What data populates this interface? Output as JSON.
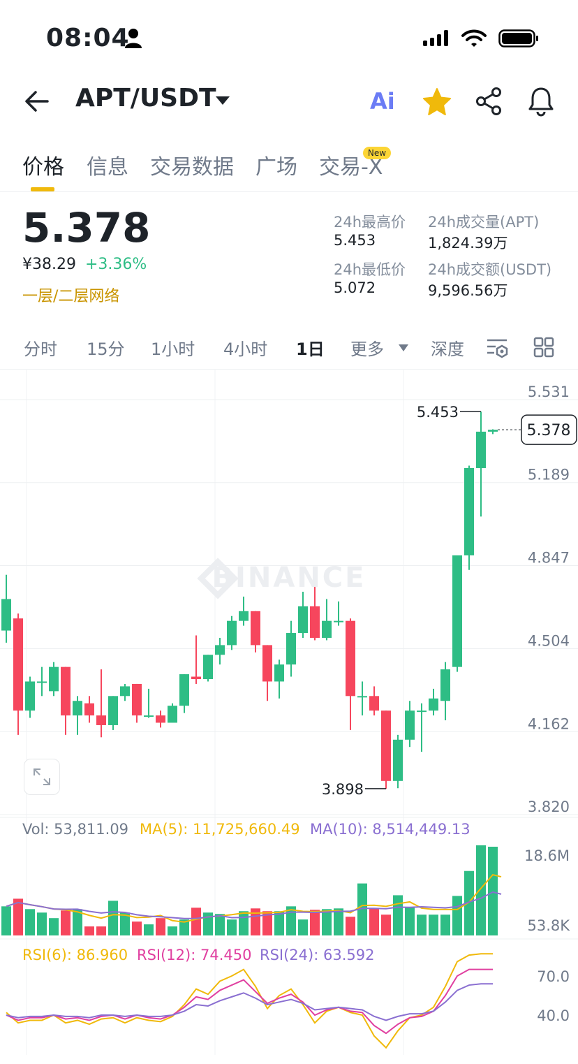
{
  "status_bar": {
    "time": "08:04",
    "icons": [
      "person-icon",
      "signal-icon",
      "wifi-icon",
      "battery-icon"
    ]
  },
  "header": {
    "pair": "APT/USDT",
    "ai_label": "Ai",
    "icons": [
      "back-arrow-icon",
      "chevron-down-icon",
      "star-icon",
      "share-icon",
      "bell-icon"
    ],
    "star_color": "#f0b90b"
  },
  "tabs": [
    {
      "label": "价格"
    },
    {
      "label": "信息"
    },
    {
      "label": "交易数据"
    },
    {
      "label": "广场"
    },
    {
      "label": "交易-X",
      "badge": "New"
    }
  ],
  "ticker": {
    "last_price": "5.378",
    "cny_price": "¥38.29",
    "change_pct": "+3.36%",
    "network_tag": "一层/二层网络",
    "high_label": "24h最高价",
    "high_value": "5.453",
    "low_label": "24h最低价",
    "low_value": "5.072",
    "vol_base_label": "24h成交量(APT)",
    "vol_base_value": "1,824.39万",
    "vol_quote_label": "24h成交额(USDT)",
    "vol_quote_value": "9,596.56万"
  },
  "intervals": {
    "items": [
      "分时",
      "15分",
      "1小时",
      "4小时",
      "1日",
      "更多",
      "深度"
    ],
    "active": "1日",
    "icons": [
      "indicator-settings-icon",
      "layout-grid-icon"
    ]
  },
  "colors": {
    "up": "#2ebd85",
    "down": "#f6465d",
    "accent": "#f0b90b",
    "ma5": "#f0b90b",
    "ma10": "#8a6fd1",
    "rsi6": "#f0b90b",
    "rsi12": "#e040a0",
    "rsi24": "#8a6fd1"
  },
  "watermark": "BINANCE",
  "chart_data": {
    "type": "candlestick",
    "y_axis_labels": [
      "5.531",
      "5.189",
      "4.847",
      "4.504",
      "4.162",
      "3.820"
    ],
    "ylim": [
      3.82,
      5.531
    ],
    "current_price_tag": "5.378",
    "max_marker": "5.453",
    "min_marker": "3.898",
    "candles": [
      {
        "o": 4.55,
        "h": 4.78,
        "l": 4.5,
        "c": 4.68
      },
      {
        "o": 4.6,
        "h": 4.62,
        "l": 4.12,
        "c": 4.22
      },
      {
        "o": 4.22,
        "h": 4.36,
        "l": 4.19,
        "c": 4.34
      },
      {
        "o": 4.34,
        "h": 4.4,
        "l": 4.28,
        "c": 4.34
      },
      {
        "o": 4.3,
        "h": 4.42,
        "l": 4.28,
        "c": 4.4
      },
      {
        "o": 4.4,
        "h": 4.4,
        "l": 4.12,
        "c": 4.2
      },
      {
        "o": 4.2,
        "h": 4.28,
        "l": 4.12,
        "c": 4.26
      },
      {
        "o": 4.25,
        "h": 4.28,
        "l": 4.17,
        "c": 4.2
      },
      {
        "o": 4.2,
        "h": 4.39,
        "l": 4.11,
        "c": 4.16
      },
      {
        "o": 4.16,
        "h": 4.28,
        "l": 4.14,
        "c": 4.28
      },
      {
        "o": 4.28,
        "h": 4.33,
        "l": 4.26,
        "c": 4.32
      },
      {
        "o": 4.33,
        "h": 4.33,
        "l": 4.17,
        "c": 4.2
      },
      {
        "o": 4.2,
        "h": 4.31,
        "l": 4.19,
        "c": 4.2
      },
      {
        "o": 4.2,
        "h": 4.22,
        "l": 4.15,
        "c": 4.17
      },
      {
        "o": 4.17,
        "h": 4.25,
        "l": 4.17,
        "c": 4.24
      },
      {
        "o": 4.24,
        "h": 4.37,
        "l": 4.21,
        "c": 4.37
      },
      {
        "o": 4.36,
        "h": 4.53,
        "l": 4.33,
        "c": 4.35
      },
      {
        "o": 4.35,
        "h": 4.45,
        "l": 4.34,
        "c": 4.45
      },
      {
        "o": 4.45,
        "h": 4.52,
        "l": 4.41,
        "c": 4.49
      },
      {
        "o": 4.49,
        "h": 4.61,
        "l": 4.47,
        "c": 4.59
      },
      {
        "o": 4.59,
        "h": 4.69,
        "l": 4.57,
        "c": 4.63
      },
      {
        "o": 4.63,
        "h": 4.63,
        "l": 4.46,
        "c": 4.49
      },
      {
        "o": 4.49,
        "h": 4.49,
        "l": 4.26,
        "c": 4.34
      },
      {
        "o": 4.34,
        "h": 4.43,
        "l": 4.27,
        "c": 4.41
      },
      {
        "o": 4.41,
        "h": 4.59,
        "l": 4.36,
        "c": 4.54
      },
      {
        "o": 4.54,
        "h": 4.71,
        "l": 4.52,
        "c": 4.65
      },
      {
        "o": 4.65,
        "h": 4.73,
        "l": 4.51,
        "c": 4.52
      },
      {
        "o": 4.52,
        "h": 4.68,
        "l": 4.51,
        "c": 4.59
      },
      {
        "o": 4.59,
        "h": 4.67,
        "l": 4.57,
        "c": 4.59
      },
      {
        "o": 4.59,
        "h": 4.6,
        "l": 4.14,
        "c": 4.28
      },
      {
        "o": 4.28,
        "h": 4.34,
        "l": 4.2,
        "c": 4.28
      },
      {
        "o": 4.28,
        "h": 4.32,
        "l": 4.2,
        "c": 4.22
      },
      {
        "o": 4.22,
        "h": 4.22,
        "l": 3.898,
        "c": 3.93
      },
      {
        "o": 3.93,
        "h": 4.12,
        "l": 3.9,
        "c": 4.1
      },
      {
        "o": 4.1,
        "h": 4.26,
        "l": 4.07,
        "c": 4.22
      },
      {
        "o": 4.22,
        "h": 4.25,
        "l": 4.05,
        "c": 4.22
      },
      {
        "o": 4.22,
        "h": 4.31,
        "l": 4.2,
        "c": 4.27
      },
      {
        "o": 4.26,
        "h": 4.42,
        "l": 4.18,
        "c": 4.39
      },
      {
        "o": 4.4,
        "h": 4.85,
        "l": 4.38,
        "c": 4.86
      },
      {
        "o": 4.86,
        "h": 5.23,
        "l": 4.8,
        "c": 5.22
      },
      {
        "o": 5.22,
        "h": 5.453,
        "l": 5.02,
        "c": 5.37
      },
      {
        "o": 5.37,
        "h": 5.38,
        "l": 5.36,
        "c": 5.378
      }
    ],
    "volume": {
      "legend": {
        "vol": "Vol: 53,811.09",
        "ma5": "MA(5): 11,725,660.49",
        "ma10": "MA(10): 8,514,449.13"
      },
      "y_axis_labels": [
        "18.6M",
        "53.8K"
      ],
      "values": [
        4.2,
        5.3,
        3.8,
        3.3,
        2.5,
        3.6,
        3.8,
        1.3,
        1.3,
        5.0,
        3.3,
        2.0,
        1.6,
        2.5,
        1.3,
        2.3,
        4.0,
        3.3,
        3.1,
        2.3,
        3.5,
        3.9,
        3.5,
        3.5,
        4.2,
        2.3,
        3.7,
        3.8,
        3.9,
        2.7,
        7.5,
        3.9,
        3.0,
        5.8,
        4.0,
        3.0,
        3.0,
        3.0,
        5.7,
        9.3,
        13.0,
        12.8
      ]
    },
    "rsi": {
      "legend": {
        "rsi6": "RSI(6): 86.960",
        "rsi12": "RSI(12): 74.450",
        "rsi24": "RSI(24): 63.592"
      },
      "y_axis_labels": [
        "70.0",
        "40.0"
      ],
      "rsi6": [
        42,
        34,
        36,
        36,
        40,
        34,
        36,
        33,
        37,
        38,
        34,
        38,
        36,
        35,
        39,
        48,
        60,
        56,
        66,
        70,
        75,
        62,
        45,
        55,
        60,
        48,
        34,
        43,
        46,
        42,
        40,
        24,
        15,
        28,
        38,
        40,
        46,
        62,
        81,
        86,
        87,
        87
      ],
      "rsi12": [
        40,
        36,
        38,
        38,
        40,
        37,
        38,
        36,
        39,
        40,
        37,
        40,
        38,
        37,
        40,
        46,
        54,
        52,
        59,
        63,
        67,
        58,
        49,
        53,
        56,
        50,
        40,
        44,
        46,
        43,
        42,
        32,
        26,
        33,
        38,
        39,
        43,
        55,
        70,
        75,
        75,
        75
      ],
      "rsi24": [
        40,
        38,
        39,
        39,
        40,
        39,
        39,
        38,
        40,
        40,
        39,
        40,
        39,
        39,
        40,
        43,
        48,
        47,
        51,
        54,
        57,
        53,
        48,
        50,
        52,
        49,
        44,
        45,
        46,
        45,
        44,
        39,
        36,
        39,
        41,
        41,
        43,
        50,
        59,
        63,
        64,
        64
      ]
    }
  }
}
